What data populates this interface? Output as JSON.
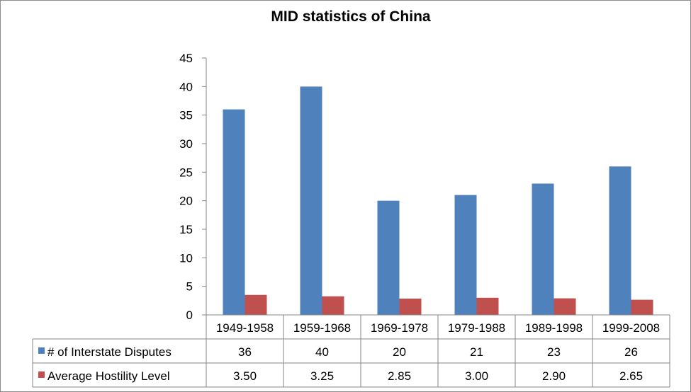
{
  "chart_data": {
    "type": "bar",
    "title": "MID statistics of China",
    "categories": [
      "1949-1958",
      "1959-1968",
      "1969-1978",
      "1979-1988",
      "1989-1998",
      "1999-2008"
    ],
    "series": [
      {
        "name": "# of Interstate Disputes",
        "color": "#4f81bd",
        "values": [
          36,
          40,
          20,
          21,
          23,
          26
        ],
        "table_values": [
          "36",
          "40",
          "20",
          "21",
          "23",
          "26"
        ]
      },
      {
        "name": "Average Hostility Level",
        "color": "#c0504d",
        "values": [
          3.5,
          3.25,
          2.85,
          3.0,
          2.9,
          2.65
        ],
        "table_values": [
          "3.50",
          "3.25",
          "2.85",
          "3.00",
          "2.90",
          "2.65"
        ]
      }
    ],
    "ylim": [
      0,
      45
    ],
    "yticks": [
      "0",
      "5",
      "10",
      "15",
      "20",
      "25",
      "30",
      "35",
      "40",
      "45"
    ],
    "grid": false,
    "legend": "data-table"
  }
}
